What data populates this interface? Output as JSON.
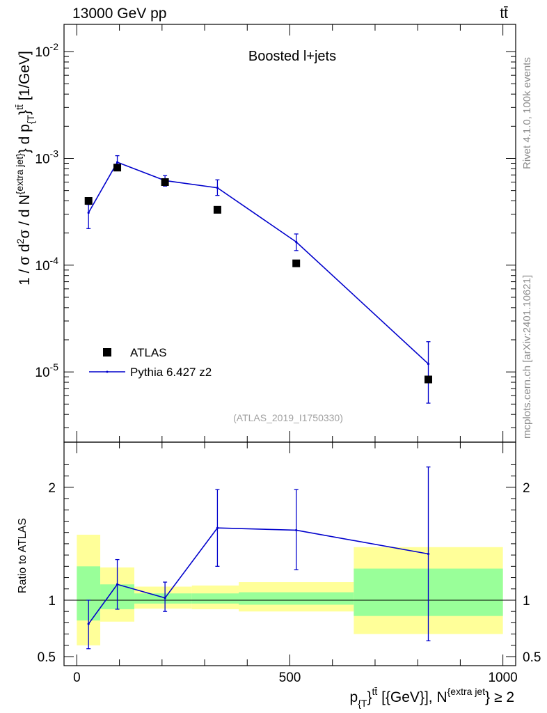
{
  "header": {
    "energy": "13000 GeV pp",
    "process": "tt̄"
  },
  "side_labels": {
    "rivet": "Rivet 4.1.0,  100k events",
    "mcplots": "mcplots.cern.ch [arXiv:2401.10621]"
  },
  "chart_data": [
    {
      "type": "scatter",
      "title": "Boosted l+jets",
      "analysis_tag": "(ATLAS_2019_I1750330)",
      "xlabel": "p_{T}^{tt̄} [{GeV}], N^{extra jet} ≥ 2",
      "ylabel": "1 / σ d²σ / d N^{extra jet} d p_{T}^{tt̄} [1/GeV]",
      "yscale": "log",
      "xlim": [
        -30,
        1030
      ],
      "ylim": [
        2.2e-06,
        0.018
      ],
      "ytick_labels": [
        "10^-2",
        "10^-3",
        "10^-4",
        "10^-5"
      ],
      "legend_position": "lower-left",
      "series": [
        {
          "name": "ATLAS",
          "style": "markers",
          "x": [
            27.5,
            95,
            207,
            330,
            515,
            825
          ],
          "y": [
            0.0004,
            0.00082,
            0.0006,
            0.00033,
            0.000104,
            8.5e-06
          ]
        },
        {
          "name": "Pythia 6.427 z2",
          "style": "line-errorbars",
          "color": "#0000cc",
          "x": [
            27.5,
            95,
            207,
            330,
            515,
            825
          ],
          "y": [
            0.00031,
            0.00092,
            0.00062,
            0.00053,
            0.000165,
            1.19e-05
          ],
          "err_low": [
            0.00022,
            0.00078,
            0.00055,
            0.00045,
            0.000137,
            5.1e-06
          ],
          "err_high": [
            0.00037,
            0.00106,
            0.00069,
            0.00063,
            0.000196,
            1.92e-05
          ]
        }
      ]
    },
    {
      "type": "scatter",
      "ylabel": "Ratio to ATLAS",
      "xlim": [
        -30,
        1030
      ],
      "ylim": [
        0.42,
        2.4
      ],
      "x_ticks": [
        0,
        500,
        1000
      ],
      "x_tick_labels": [
        "0",
        "500",
        "1000"
      ],
      "y_ticks": [
        0.5,
        1,
        2
      ],
      "y_tick_labels": [
        "0.5",
        "1",
        "2"
      ],
      "bands": [
        {
          "xlow": 0,
          "xhigh": 55,
          "yellow": [
            0.6,
            1.58
          ],
          "green": [
            0.82,
            1.3
          ]
        },
        {
          "xlow": 55,
          "xhigh": 135,
          "yellow": [
            0.81,
            1.29
          ],
          "green": [
            0.92,
            1.14
          ]
        },
        {
          "xlow": 135,
          "xhigh": 270,
          "yellow": [
            0.925,
            1.12
          ],
          "green": [
            0.97,
            1.06
          ]
        },
        {
          "xlow": 270,
          "xhigh": 380,
          "yellow": [
            0.92,
            1.13
          ],
          "green": [
            0.97,
            1.06
          ]
        },
        {
          "xlow": 380,
          "xhigh": 650,
          "yellow": [
            0.9,
            1.16
          ],
          "green": [
            0.96,
            1.07
          ]
        },
        {
          "xlow": 650,
          "xhigh": 1000,
          "yellow": [
            0.7,
            1.47
          ],
          "green": [
            0.86,
            1.28
          ]
        }
      ],
      "series": [
        {
          "name": "Pythia 6.427 z2",
          "color": "#0000cc",
          "x": [
            27.5,
            95,
            207,
            330,
            515,
            825
          ],
          "y": [
            0.79,
            1.14,
            1.02,
            1.64,
            1.62,
            1.41
          ],
          "err_low": [
            0.57,
            0.92,
            0.9,
            1.3,
            1.27,
            0.64
          ],
          "err_high": [
            1.0,
            1.36,
            1.16,
            1.98,
            1.98,
            2.18
          ]
        }
      ]
    }
  ]
}
